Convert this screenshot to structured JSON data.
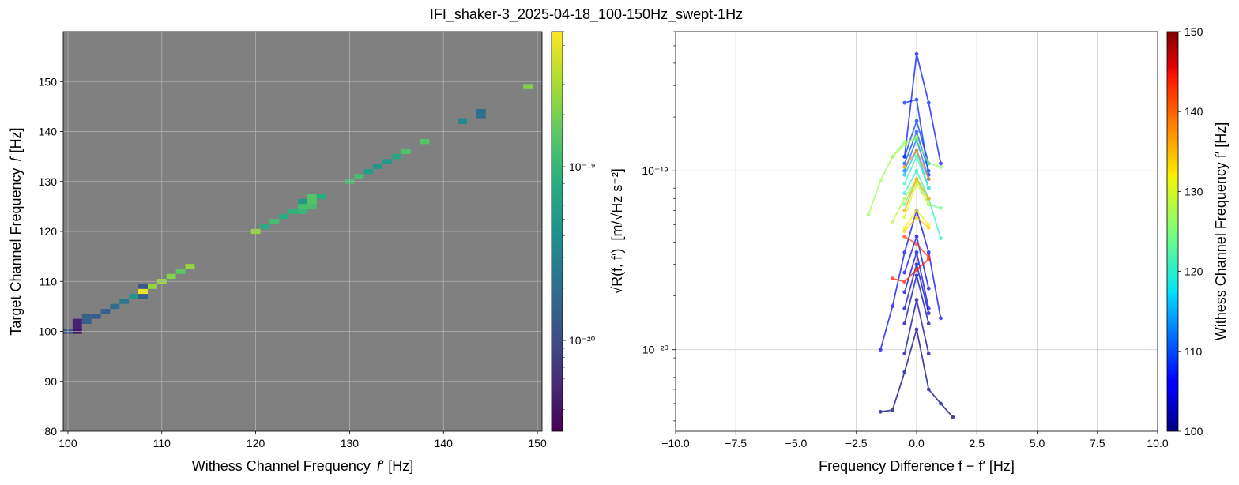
{
  "figure": {
    "title": "IFI_shaker-3_2025-04-18_100-150Hz_swept-1Hz"
  },
  "colors": {
    "panel_background": "#808080",
    "grid_left": "#b0b0b0",
    "grid_right": "#c8c8c8"
  },
  "chart_data": [
    {
      "type": "heatmap",
      "title": "",
      "xlabel_prefix": "Withess Channel Frequency",
      "xlabel_symbol": "f′",
      "xlabel_unit": "[Hz]",
      "ylabel_prefix": "Target Channel Frequency",
      "ylabel_symbol": "f",
      "ylabel_unit": "[Hz]",
      "xlim": [
        99.5,
        150.5
      ],
      "ylim": [
        80,
        160
      ],
      "x_ticks": [
        "100",
        "110",
        "120",
        "130",
        "140",
        "150"
      ],
      "y_ticks": [
        "80",
        "90",
        "100",
        "110",
        "120",
        "130",
        "140",
        "150"
      ],
      "grid": true,
      "colorbar": {
        "label_main": "√R(f, f′)",
        "label_unit": "[m/√Hz s⁻²]",
        "scale": "log",
        "range": [
          3e-21,
          6e-19
        ],
        "colormap": "viridis",
        "tick_values": [
          1e-20,
          1e-19
        ],
        "tick_labels": [
          "10⁻²⁰",
          "10⁻¹⁹"
        ]
      },
      "cells": [
        {
          "x": 100,
          "y": 100,
          "v": 1.3e-20
        },
        {
          "x": 101,
          "y": 100,
          "v": 4e-21
        },
        {
          "x": 101,
          "y": 101,
          "v": 5e-21
        },
        {
          "x": 101,
          "y": 102,
          "v": 5e-21
        },
        {
          "x": 102,
          "y": 102,
          "v": 1.5e-20
        },
        {
          "x": 102,
          "y": 103,
          "v": 1.6e-20
        },
        {
          "x": 103,
          "y": 103,
          "v": 1.4e-20
        },
        {
          "x": 104,
          "y": 104,
          "v": 1.5e-20
        },
        {
          "x": 105,
          "y": 105,
          "v": 2e-20
        },
        {
          "x": 106,
          "y": 106,
          "v": 2.5e-20
        },
        {
          "x": 107,
          "y": 107,
          "v": 5e-20
        },
        {
          "x": 108,
          "y": 107,
          "v": 1.5e-20
        },
        {
          "x": 108,
          "y": 108,
          "v": 5e-19
        },
        {
          "x": 108,
          "y": 109,
          "v": 1.2e-20
        },
        {
          "x": 109,
          "y": 109,
          "v": 2.5e-19
        },
        {
          "x": 110,
          "y": 110,
          "v": 2.5e-19
        },
        {
          "x": 111,
          "y": 111,
          "v": 2.2e-19
        },
        {
          "x": 112,
          "y": 112,
          "v": 1.5e-19
        },
        {
          "x": 113,
          "y": 113,
          "v": 2.5e-19
        },
        {
          "x": 120,
          "y": 120,
          "v": 2.5e-19
        },
        {
          "x": 121,
          "y": 121,
          "v": 8e-20
        },
        {
          "x": 122,
          "y": 122,
          "v": 1.2e-19
        },
        {
          "x": 123,
          "y": 123,
          "v": 8e-20
        },
        {
          "x": 124,
          "y": 124,
          "v": 9e-20
        },
        {
          "x": 125,
          "y": 124,
          "v": 1e-19
        },
        {
          "x": 125,
          "y": 125,
          "v": 1.2e-19
        },
        {
          "x": 125,
          "y": 126,
          "v": 5e-20
        },
        {
          "x": 126,
          "y": 125,
          "v": 1.2e-19
        },
        {
          "x": 126,
          "y": 126,
          "v": 1.4e-19
        },
        {
          "x": 126,
          "y": 127,
          "v": 1.4e-19
        },
        {
          "x": 127,
          "y": 127,
          "v": 8e-20
        },
        {
          "x": 130,
          "y": 130,
          "v": 1.2e-19
        },
        {
          "x": 131,
          "y": 131,
          "v": 1.2e-19
        },
        {
          "x": 132,
          "y": 132,
          "v": 6e-20
        },
        {
          "x": 133,
          "y": 133,
          "v": 5e-20
        },
        {
          "x": 134,
          "y": 134,
          "v": 5e-20
        },
        {
          "x": 135,
          "y": 135,
          "v": 7e-20
        },
        {
          "x": 136,
          "y": 136,
          "v": 1.3e-19
        },
        {
          "x": 138,
          "y": 138,
          "v": 1.4e-19
        },
        {
          "x": 142,
          "y": 142,
          "v": 3.5e-20
        },
        {
          "x": 144,
          "y": 143,
          "v": 2e-20
        },
        {
          "x": 144,
          "y": 144,
          "v": 2e-20
        },
        {
          "x": 149,
          "y": 149,
          "v": 2.2e-19
        }
      ]
    },
    {
      "type": "line",
      "title": "",
      "xlabel": "Frequency Difference f − f′ [Hz]",
      "ylabel": "",
      "xlim": [
        -10,
        10
      ],
      "ylim": [
        3.5e-21,
        6e-19
      ],
      "yscale": "log",
      "grid": true,
      "x_ticks": [
        "−10.0",
        "−7.5",
        "−5.0",
        "−2.5",
        "0.0",
        "2.5",
        "5.0",
        "7.5",
        "10.0"
      ],
      "y_tick_values": [
        1e-20,
        1e-19
      ],
      "y_tick_labels": [
        "10⁻²⁰",
        "10⁻¹⁹"
      ],
      "colorbar": {
        "label": "Withess Channel Frequency f′ [Hz]",
        "range": [
          100,
          150
        ],
        "colormap": "jet",
        "ticks": [
          "100",
          "110",
          "120",
          "130",
          "140",
          "150"
        ]
      },
      "series": [
        {
          "f": 100,
          "x": [
            -1.5,
            -1.0,
            -0.5,
            0.0,
            0.5,
            1.0,
            1.5
          ],
          "y": [
            4.5e-21,
            4.6e-21,
            7.5e-21,
            1.3e-20,
            6e-21,
            5e-21,
            4.2e-21
          ]
        },
        {
          "f": 101,
          "x": [
            -0.5,
            0.0,
            0.5
          ],
          "y": [
            9.5e-21,
            1.9e-20,
            9.5e-21
          ]
        },
        {
          "f": 102,
          "x": [
            -0.5,
            0.0,
            0.5
          ],
          "y": [
            1.4e-20,
            2.6e-20,
            1.4e-20
          ]
        },
        {
          "f": 103,
          "x": [
            -0.5,
            0.0,
            0.5
          ],
          "y": [
            1.7e-20,
            3e-20,
            1.6e-20
          ]
        },
        {
          "f": 104,
          "x": [
            -0.5,
            0.0,
            0.5
          ],
          "y": [
            2.1e-20,
            3.5e-20,
            1.7e-20
          ]
        },
        {
          "f": 105,
          "x": [
            -0.5,
            0.0,
            0.5
          ],
          "y": [
            2.7e-20,
            4.3e-20,
            2.2e-20
          ]
        },
        {
          "f": 106,
          "x": [
            -1.5,
            -1.0,
            -0.5,
            0.0,
            0.5,
            1.0
          ],
          "y": [
            1e-20,
            1.75e-20,
            3.5e-20,
            6e-20,
            3.5e-20,
            1.5e-20
          ]
        },
        {
          "f": 107,
          "x": [
            -0.5,
            0.0,
            0.5,
            1.0
          ],
          "y": [
            1.2e-19,
            4.5e-19,
            2.4e-19,
            1.1e-19
          ]
        },
        {
          "f": 108,
          "x": [
            -0.5,
            0.0,
            0.5
          ],
          "y": [
            2.4e-19,
            2.5e-19,
            9.5e-20
          ]
        },
        {
          "f": 109,
          "x": [
            -0.5,
            0.0,
            0.5
          ],
          "y": [
            1.2e-19,
            1.9e-19,
            1.1e-19
          ]
        },
        {
          "f": 110,
          "x": [
            -0.5,
            0.0,
            0.5
          ],
          "y": [
            1.1e-19,
            1.65e-19,
            1e-19
          ]
        },
        {
          "f": 112,
          "x": [
            -0.5,
            0.0,
            0.5
          ],
          "y": [
            1e-19,
            1.5e-19,
            9e-20
          ]
        },
        {
          "f": 116,
          "x": [
            -0.5,
            0.0,
            0.5
          ],
          "y": [
            9.5e-20,
            1.3e-19,
            8e-20
          ]
        },
        {
          "f": 120,
          "x": [
            -0.5,
            0.0,
            0.5,
            1.0
          ],
          "y": [
            7.5e-20,
            1e-19,
            7e-20,
            4.2e-20
          ]
        },
        {
          "f": 121,
          "x": [
            -0.5,
            0.0,
            0.5
          ],
          "y": [
            8.5e-20,
            1.2e-19,
            8e-20
          ]
        },
        {
          "f": 124,
          "x": [
            -0.5,
            0.0,
            0.5,
            1.0
          ],
          "y": [
            6.5e-20,
            9e-20,
            6.5e-20,
            6.2e-20
          ]
        },
        {
          "f": 126,
          "x": [
            -1.0,
            -0.5,
            0.0,
            0.5,
            1.0
          ],
          "y": [
            1.2e-19,
            1.45e-19,
            1.5e-19,
            1.1e-19,
            1.05e-19
          ]
        },
        {
          "f": 127,
          "x": [
            -2.0,
            -1.5,
            -1.0,
            -0.5,
            0.0
          ],
          "y": [
            5.7e-20,
            8.8e-20,
            1.2e-19,
            1.4e-19,
            1.55e-19
          ]
        },
        {
          "f": 128,
          "x": [
            -1.0,
            -0.5,
            0.0,
            0.5
          ],
          "y": [
            5.2e-20,
            7e-20,
            9e-20,
            7e-20
          ]
        },
        {
          "f": 130,
          "x": [
            -0.5,
            0.0,
            0.5
          ],
          "y": [
            5.5e-20,
            8.5e-20,
            6.5e-20
          ]
        },
        {
          "f": 132,
          "x": [
            -0.5,
            0.0,
            0.5
          ],
          "y": [
            4.8e-20,
            6e-20,
            5e-20
          ]
        },
        {
          "f": 134,
          "x": [
            -0.5,
            0.0,
            0.5
          ],
          "y": [
            4.6e-20,
            5.5e-20,
            4.8e-20
          ]
        },
        {
          "f": 136,
          "x": [
            -0.5,
            0.0,
            0.5
          ],
          "y": [
            6e-20,
            9e-20,
            7e-20
          ]
        },
        {
          "f": 138,
          "x": [
            -0.5,
            0.0,
            0.5
          ],
          "y": [
            1.05e-19,
            1.3e-19,
            9e-20
          ]
        },
        {
          "f": 142,
          "x": [
            -0.5,
            0.0,
            0.5
          ],
          "y": [
            4.3e-20,
            3.9e-20,
            3.3e-20
          ]
        },
        {
          "f": 144,
          "x": [
            -1.0,
            -0.5,
            0.0,
            0.5
          ],
          "y": [
            2.5e-20,
            2.4e-20,
            2.8e-20,
            3.2e-20
          ]
        }
      ]
    }
  ]
}
